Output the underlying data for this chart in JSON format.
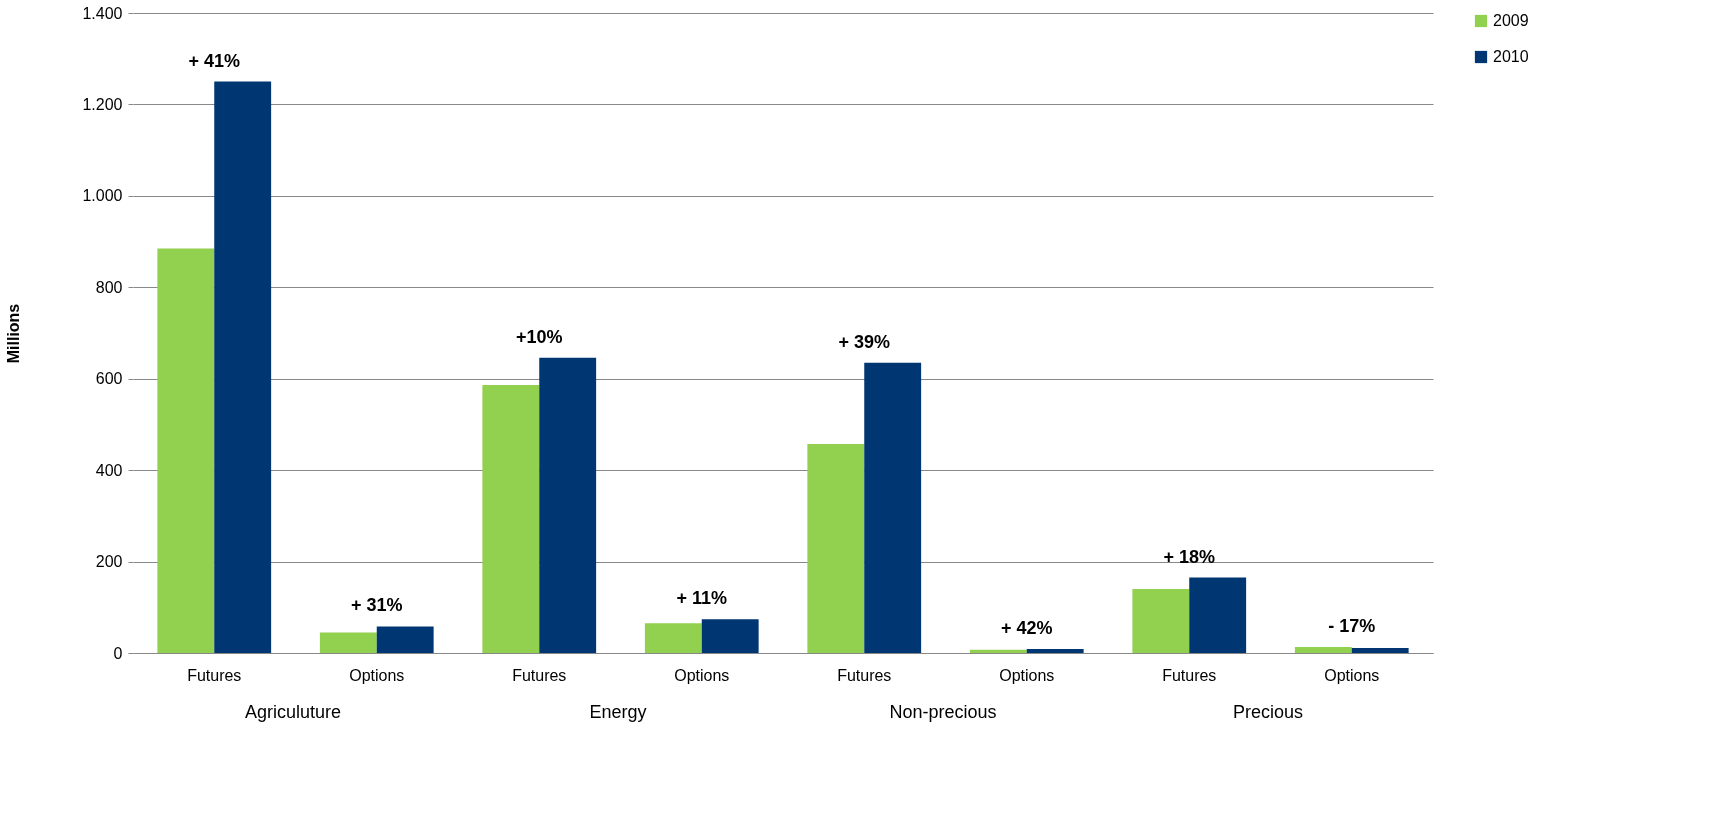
{
  "chart_data": {
    "type": "bar",
    "ylabel": "Millions",
    "categories": [
      "Futures",
      "Options",
      "Futures",
      "Options",
      "Futures",
      "Options",
      "Futures",
      "Options"
    ],
    "series": [
      {
        "name": "2009",
        "color": "#92d050",
        "values": [
          885,
          45,
          586,
          65,
          457,
          7,
          140,
          13
        ]
      },
      {
        "name": "2010",
        "color": "#003671",
        "values": [
          1250,
          58,
          646,
          74,
          635,
          9,
          165,
          11
        ]
      }
    ],
    "annotations": [
      "Agriculuture",
      "Energy",
      "Non-precious",
      "Precious",
      "+ 41%",
      "+ 31%",
      "+10%",
      "+ 11%",
      "+ 39%",
      "+ 42%",
      "+ 18%",
      "- 17%"
    ],
    "ylim": [
      0,
      1400
    ],
    "yticks": [
      0,
      200,
      400,
      600,
      800,
      {
        "value": 1000,
        "label": "1.000"
      },
      {
        "value": 1200,
        "label": "1.200"
      },
      {
        "value": 1400,
        "label": "1.400"
      }
    ],
    "grid": "y",
    "legend": "right"
  }
}
